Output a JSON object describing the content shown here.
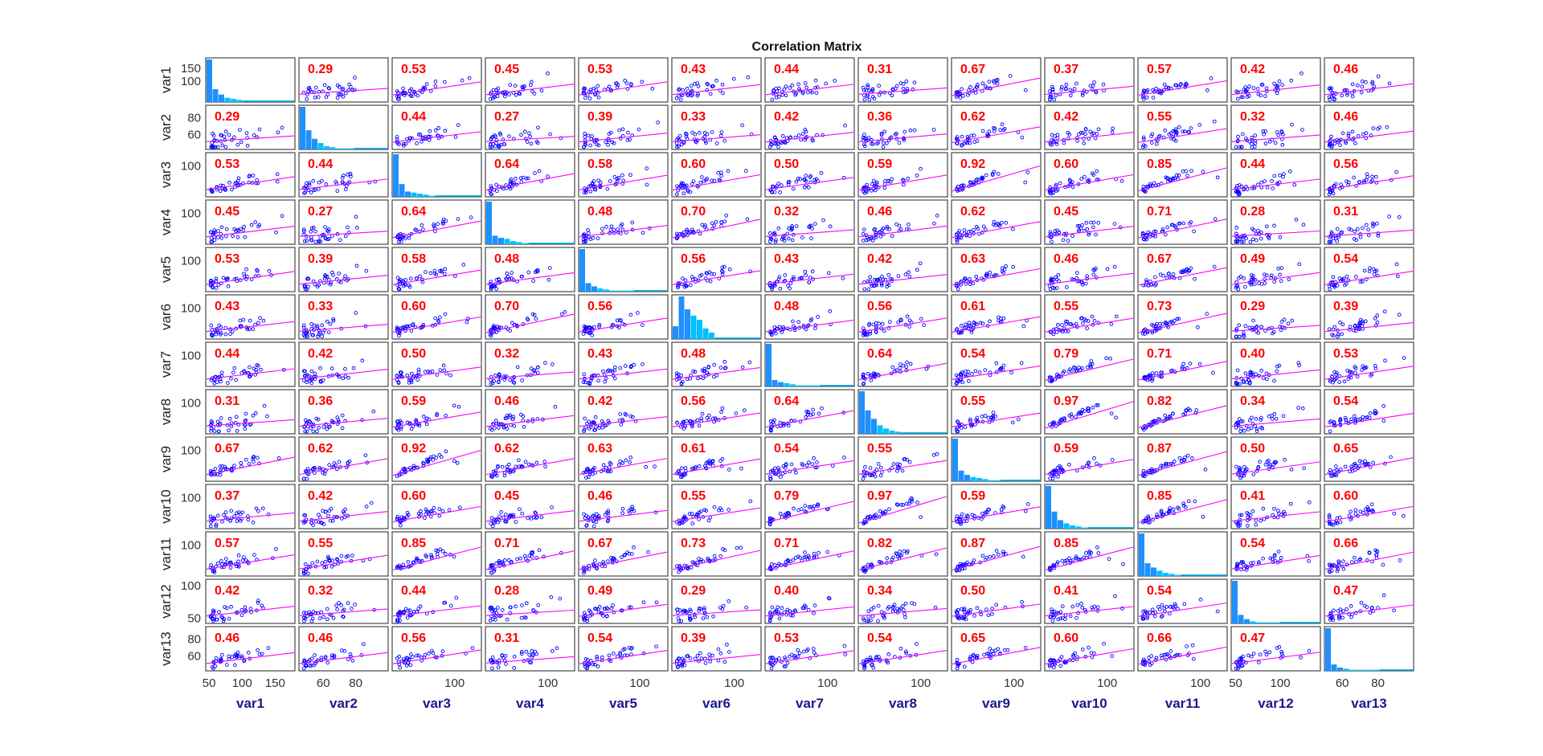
{
  "colors": {
    "scatter": "#0000ff",
    "fit_line": "#ff00ff",
    "correlation_text": "#ff0000",
    "hist_primary": "#1e90ff",
    "hist_tail": "#00bfff",
    "xlabel": "#1a1a8c"
  },
  "chart_data": {
    "type": "scatter",
    "subtype": "correlation-matrix",
    "title": "Correlation Matrix",
    "variables": [
      "var1",
      "var2",
      "var3",
      "var4",
      "var5",
      "var6",
      "var7",
      "var8",
      "var9",
      "var10",
      "var11",
      "var12",
      "var13"
    ],
    "diagonal": "histogram",
    "grid": false,
    "correlations": [
      [
        null,
        0.29,
        0.53,
        0.45,
        0.53,
        0.43,
        0.44,
        0.31,
        0.67,
        0.37,
        0.57,
        0.42,
        0.46
      ],
      [
        0.29,
        null,
        0.44,
        0.27,
        0.39,
        0.33,
        0.42,
        0.36,
        0.62,
        0.42,
        0.55,
        0.32,
        0.46
      ],
      [
        0.53,
        0.44,
        null,
        0.64,
        0.58,
        0.6,
        0.5,
        0.59,
        0.92,
        0.6,
        0.85,
        0.44,
        0.56
      ],
      [
        0.45,
        0.27,
        0.64,
        null,
        0.48,
        0.7,
        0.32,
        0.46,
        0.62,
        0.45,
        0.71,
        0.28,
        0.31
      ],
      [
        0.53,
        0.39,
        0.58,
        0.48,
        null,
        0.56,
        0.43,
        0.42,
        0.63,
        0.46,
        0.67,
        0.49,
        0.54
      ],
      [
        0.43,
        0.33,
        0.6,
        0.7,
        0.56,
        null,
        0.48,
        0.56,
        0.61,
        0.55,
        0.73,
        0.29,
        0.39
      ],
      [
        0.44,
        0.42,
        0.5,
        0.32,
        0.43,
        0.48,
        null,
        0.64,
        0.54,
        0.79,
        0.71,
        0.4,
        0.53
      ],
      [
        0.31,
        0.36,
        0.59,
        0.46,
        0.42,
        0.56,
        0.64,
        null,
        0.55,
        0.97,
        0.82,
        0.34,
        0.54
      ],
      [
        0.67,
        0.62,
        0.92,
        0.62,
        0.63,
        0.61,
        0.54,
        0.55,
        null,
        0.59,
        0.87,
        0.5,
        0.65
      ],
      [
        0.37,
        0.42,
        0.6,
        0.45,
        0.46,
        0.55,
        0.79,
        0.97,
        0.59,
        null,
        0.85,
        0.41,
        0.6
      ],
      [
        0.57,
        0.55,
        0.85,
        0.71,
        0.67,
        0.73,
        0.71,
        0.82,
        0.87,
        0.85,
        null,
        0.54,
        0.66
      ],
      [
        0.42,
        0.32,
        0.44,
        0.28,
        0.49,
        0.29,
        0.4,
        0.34,
        0.5,
        0.41,
        0.54,
        null,
        0.47
      ],
      [
        0.46,
        0.46,
        0.56,
        0.31,
        0.54,
        0.39,
        0.53,
        0.54,
        0.65,
        0.6,
        0.66,
        0.47,
        null
      ]
    ],
    "x_ranges": [
      [
        45,
        180
      ],
      [
        45,
        100
      ],
      [
        30,
        130
      ],
      [
        30,
        130
      ],
      [
        35,
        130
      ],
      [
        30,
        130
      ],
      [
        30,
        130
      ],
      [
        30,
        130
      ],
      [
        30,
        130
      ],
      [
        30,
        130
      ],
      [
        30,
        130
      ],
      [
        45,
        145
      ],
      [
        50,
        100
      ]
    ],
    "x_ticks": [
      [
        50,
        100,
        150
      ],
      [
        60,
        80
      ],
      [
        100
      ],
      [
        100
      ],
      [
        100
      ],
      [
        100
      ],
      [
        100
      ],
      [
        100
      ],
      [
        100
      ],
      [
        100
      ],
      [
        100
      ],
      [
        50,
        100
      ],
      [
        60,
        80
      ]
    ],
    "y_ranges": [
      [
        20,
        190
      ],
      [
        42,
        95
      ],
      [
        30,
        130
      ],
      [
        30,
        130
      ],
      [
        30,
        130
      ],
      [
        30,
        130
      ],
      [
        30,
        130
      ],
      [
        30,
        130
      ],
      [
        30,
        130
      ],
      [
        30,
        130
      ],
      [
        30,
        130
      ],
      [
        42,
        110
      ],
      [
        42,
        95
      ]
    ],
    "y_ticks": [
      [
        100,
        150
      ],
      [
        60,
        80
      ],
      [
        100
      ],
      [
        100
      ],
      [
        100
      ],
      [
        100
      ],
      [
        100
      ],
      [
        100
      ],
      [
        100
      ],
      [
        100
      ],
      [
        100
      ],
      [
        50,
        100
      ],
      [
        60,
        80
      ]
    ],
    "histograms": [
      [
        40,
        12,
        7,
        4,
        3,
        2
      ],
      [
        40,
        18,
        10,
        6,
        3,
        2,
        1,
        1,
        1
      ],
      [
        40,
        12,
        5,
        4,
        3,
        2,
        1
      ],
      [
        40,
        8,
        6,
        5,
        3,
        2,
        1
      ],
      [
        40,
        8,
        5,
        3,
        2,
        1,
        1,
        1,
        1
      ],
      [
        12,
        40,
        28,
        22,
        18,
        10,
        6
      ],
      [
        40,
        6,
        4,
        3,
        2,
        1,
        1,
        1,
        1
      ],
      [
        40,
        22,
        14,
        8,
        5,
        3,
        2
      ],
      [
        40,
        10,
        6,
        4,
        3,
        2,
        1,
        1
      ],
      [
        40,
        16,
        8,
        5,
        3,
        2,
        1
      ],
      [
        40,
        12,
        8,
        5,
        3,
        2,
        1
      ],
      [
        40,
        8,
        4,
        2,
        1,
        1,
        1,
        1
      ],
      [
        40,
        6,
        3,
        2,
        1,
        1,
        1,
        1,
        1
      ]
    ]
  }
}
